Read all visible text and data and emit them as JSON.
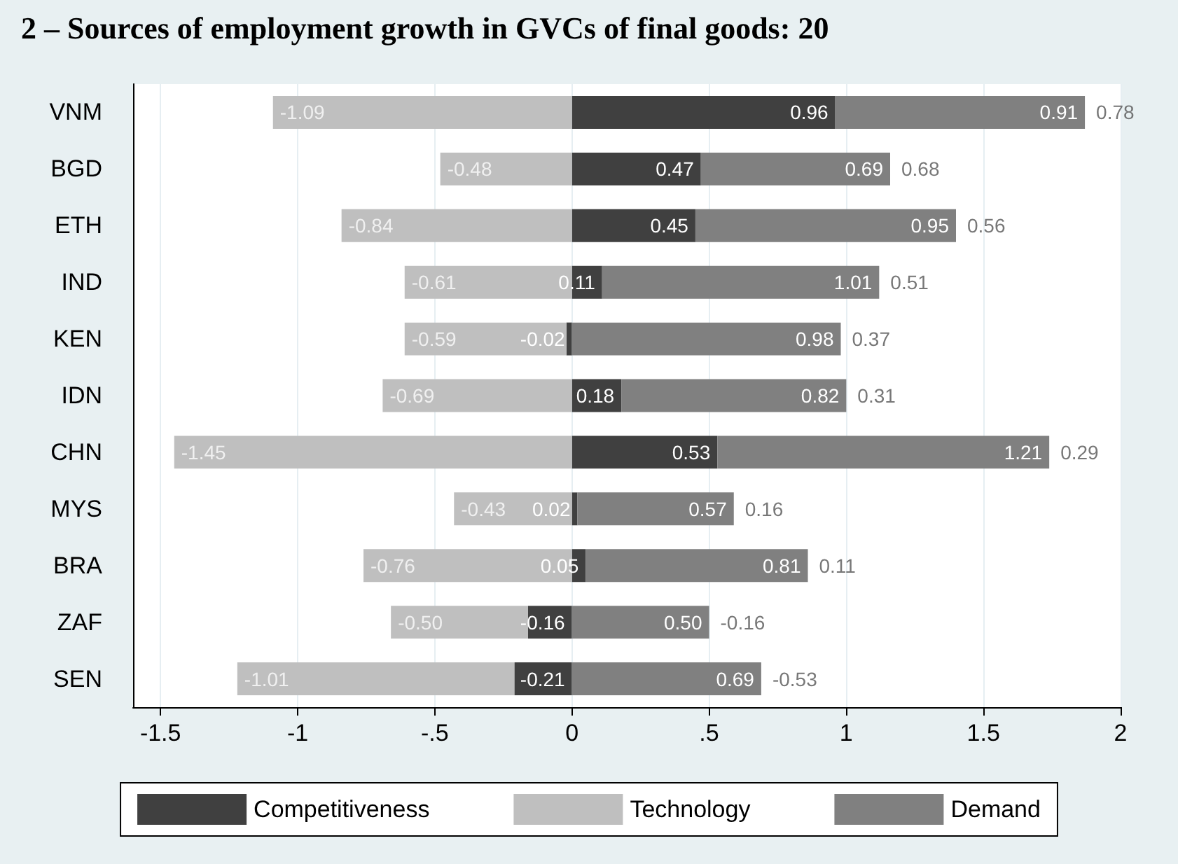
{
  "chart_data": {
    "type": "bar",
    "title": "2 – Sources of employment growth in GVCs of final goods: 20",
    "orientation": "horizontal",
    "stacked": true,
    "categories": [
      "VNM",
      "BGD",
      "ETH",
      "IND",
      "KEN",
      "IDN",
      "CHN",
      "MYS",
      "BRA",
      "ZAF",
      "SEN"
    ],
    "series": [
      {
        "name": "Competitiveness",
        "color": "#404040",
        "values": [
          0.96,
          0.47,
          0.45,
          0.11,
          -0.02,
          0.18,
          0.53,
          0.02,
          0.05,
          -0.16,
          -0.21
        ],
        "value_labels": [
          "0.96",
          "0.47",
          "0.45",
          "0.11",
          "-0.02",
          "0.18",
          "0.53",
          "0.02",
          "0.05",
          "-0.16",
          "-0.21"
        ]
      },
      {
        "name": "Technology",
        "color": "#bfbfbf",
        "values": [
          -1.09,
          -0.48,
          -0.84,
          -0.61,
          -0.59,
          -0.69,
          -1.45,
          -0.43,
          -0.76,
          -0.5,
          -1.01
        ],
        "value_labels": [
          "-1.09",
          "-0.48",
          "-0.84",
          "-0.61",
          "-0.59",
          "-0.69",
          "-1.45",
          "-0.43",
          "-0.76",
          "-0.50",
          "-1.01"
        ]
      },
      {
        "name": "Demand",
        "color": "#808080",
        "values": [
          0.91,
          0.69,
          0.95,
          1.01,
          0.98,
          0.82,
          1.21,
          0.57,
          0.81,
          0.5,
          0.69
        ],
        "value_labels": [
          "0.91",
          "0.69",
          "0.95",
          "1.01",
          "0.98",
          "0.82",
          "1.21",
          "0.57",
          "0.81",
          "0.50",
          "0.69"
        ]
      }
    ],
    "totals": [
      "0.78",
      "0.68",
      "0.56",
      "0.51",
      "0.37",
      "0.31",
      "0.29",
      "0.16",
      "0.11",
      "-0.16",
      "-0.53"
    ],
    "xlim": [
      -1.6,
      2
    ],
    "xticks": [
      -1.5,
      -1,
      {
        "value": -0.5,
        "label": "-.5"
      },
      0,
      {
        "value": 0.5,
        "label": ".5"
      },
      1,
      1.5,
      2
    ],
    "grid": "x",
    "legend": "bottom"
  }
}
